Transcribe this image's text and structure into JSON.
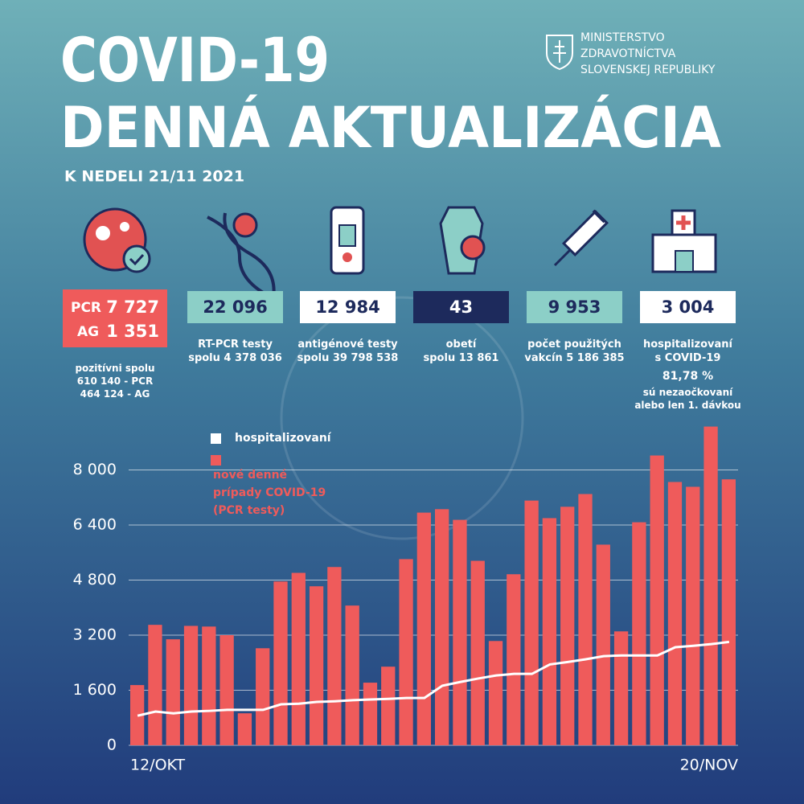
{
  "header": {
    "title": "COVID-19",
    "subtitle": "DENNÁ AKTUALIZÁCIA",
    "date": "K NEDELI 21/11 2021",
    "ministry": [
      "MINISTERSTVO",
      "ZDRAVOTNÍCTVA",
      "SLOVENSKEJ REPUBLIKY"
    ]
  },
  "positive": {
    "pcr_label": "PCR",
    "pcr": "7 727",
    "ag_label": "AG",
    "ag": "1 351",
    "caption": "pozitívni spolu\n610 140 - PCR\n464 124 - AG"
  },
  "stats": [
    {
      "value": "22 096",
      "caption": "RT-PCR testy\nspolu 4 378 036"
    },
    {
      "value": "12 984",
      "caption": "antigénové testy\nspolu 39 798 538"
    },
    {
      "value": "43",
      "caption": "obetí\nspolu  13 861"
    },
    {
      "value": "9 953",
      "caption": "počet použitých\nvakcín  5 186 385"
    },
    {
      "value": "3 004",
      "caption": "hospitalizovaní\ns COVID-19",
      "note": "81,78 %",
      "note_caption": "sú nezaočkovaní\nalebo len 1. dávkou"
    }
  ],
  "chart_data": {
    "type": "bar",
    "categories": [
      "12/OKT",
      null,
      null,
      null,
      null,
      null,
      null,
      null,
      null,
      null,
      null,
      null,
      null,
      null,
      null,
      null,
      null,
      null,
      null,
      null,
      null,
      null,
      null,
      null,
      null,
      null,
      null,
      null,
      null,
      null,
      null,
      null,
      null,
      "20/NOV"
    ],
    "series": [
      {
        "name": "nové denné\nprípady COVID-19\n(PCR testy)",
        "color": "#ef5b5b",
        "values": [
          1750,
          3500,
          3080,
          3470,
          3450,
          3200,
          930,
          2820,
          4760,
          5010,
          4620,
          5180,
          4060,
          1820,
          2285,
          5410,
          6760,
          6860,
          6550,
          5360,
          3030,
          4970,
          7110,
          6600,
          6930,
          7300,
          5830,
          3310,
          6480,
          8420,
          7650,
          7510,
          9260,
          7727
        ]
      },
      {
        "name": "hospitalizovaní",
        "color": "#ffffff",
        "type": "line",
        "values": [
          860,
          980,
          930,
          980,
          1000,
          1030,
          1030,
          1030,
          1190,
          1210,
          1260,
          1280,
          1310,
          1330,
          1350,
          1375,
          1375,
          1730,
          1840,
          1940,
          2030,
          2075,
          2075,
          2350,
          2420,
          2500,
          2590,
          2610,
          2610,
          2610,
          2850,
          2890,
          2940,
          3004
        ]
      }
    ],
    "ylim": [
      0,
      9600
    ],
    "yticks": [
      0,
      {
        "value": 1600,
        "label": "1 600"
      },
      {
        "value": 3200,
        "label": "3 200"
      },
      {
        "value": 4800,
        "label": "4 800"
      },
      {
        "value": 6400,
        "label": "6 400"
      },
      {
        "value": 8000,
        "label": "8 000"
      }
    ],
    "grid": true
  }
}
